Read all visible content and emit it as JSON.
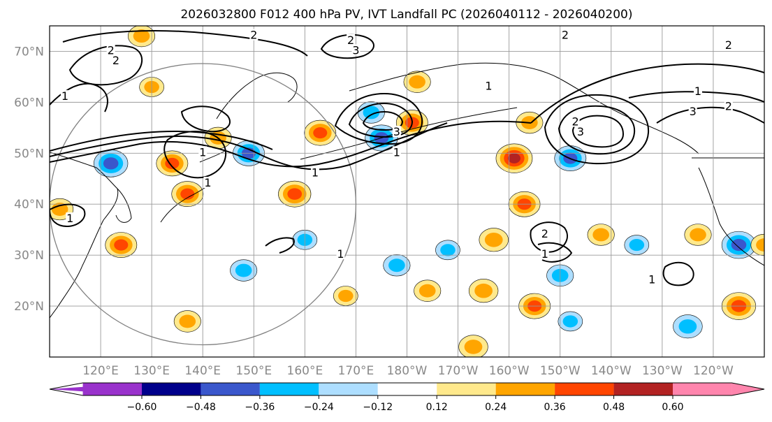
{
  "title": "2026032800 F012 400 hPa PV, IVT Landfall PC (2026040112 - 2026040200)",
  "map": {
    "projection": "PlateCarree",
    "lon_range_east": [
      110,
      250
    ],
    "lat_range": [
      10,
      75
    ],
    "lat_ticks": [
      {
        "value": 70,
        "label": "70°N"
      },
      {
        "value": 60,
        "label": "60°N"
      },
      {
        "value": 50,
        "label": "50°N"
      },
      {
        "value": 40,
        "label": "40°N"
      },
      {
        "value": 30,
        "label": "30°N"
      },
      {
        "value": 20,
        "label": "20°N"
      }
    ],
    "lon_ticks": [
      {
        "value": 120,
        "label": "120°E"
      },
      {
        "value": 130,
        "label": "130°E"
      },
      {
        "value": 140,
        "label": "140°E"
      },
      {
        "value": 150,
        "label": "150°E"
      },
      {
        "value": 160,
        "label": "160°E"
      },
      {
        "value": 170,
        "label": "170°E"
      },
      {
        "value": 180,
        "label": "180°W"
      },
      {
        "value": 190,
        "label": "170°W"
      },
      {
        "value": 200,
        "label": "160°W"
      },
      {
        "value": 210,
        "label": "150°W"
      },
      {
        "value": 220,
        "label": "140°W"
      },
      {
        "value": 230,
        "label": "130°W"
      },
      {
        "value": 240,
        "label": "120°W"
      }
    ],
    "contour_labels": [
      {
        "text": "2",
        "lon": 122,
        "lat": 70
      },
      {
        "text": "2",
        "lon": 123,
        "lat": 68
      },
      {
        "text": "2",
        "lon": 150,
        "lat": 73
      },
      {
        "text": "2",
        "lon": 169,
        "lat": 72
      },
      {
        "text": "3",
        "lon": 170,
        "lat": 70
      },
      {
        "text": "2",
        "lon": 211,
        "lat": 73
      },
      {
        "text": "2",
        "lon": 243,
        "lat": 71
      },
      {
        "text": "1",
        "lon": 113,
        "lat": 61
      },
      {
        "text": "1",
        "lon": 237,
        "lat": 62
      },
      {
        "text": "2",
        "lon": 243,
        "lat": 59
      },
      {
        "text": "3",
        "lon": 236,
        "lat": 58
      },
      {
        "text": "1",
        "lon": 196,
        "lat": 63
      },
      {
        "text": "2",
        "lon": 213,
        "lat": 56
      },
      {
        "text": "3",
        "lon": 214,
        "lat": 54
      },
      {
        "text": "3",
        "lon": 178,
        "lat": 54
      },
      {
        "text": "1",
        "lon": 178,
        "lat": 50
      },
      {
        "text": "1",
        "lon": 162,
        "lat": 46
      },
      {
        "text": "1",
        "lon": 140,
        "lat": 50
      },
      {
        "text": "1",
        "lon": 114,
        "lat": 37
      },
      {
        "text": "1",
        "lon": 141,
        "lat": 44
      },
      {
        "text": "1",
        "lon": 167,
        "lat": 30
      },
      {
        "text": "2",
        "lon": 207,
        "lat": 34
      },
      {
        "text": "1",
        "lon": 207,
        "lat": 30
      },
      {
        "text": "1",
        "lon": 228,
        "lat": 25
      }
    ],
    "range_circle": {
      "center_lon": 140,
      "center_lat": 40,
      "radius_deg": 30
    }
  },
  "colorbar": {
    "colors": [
      "#9932CC",
      "#00008B",
      "#3A57CC",
      "#00BFFF",
      "#ADDEFF",
      "#FFFFFF",
      "#FFE98C",
      "#FFA500",
      "#FF4500",
      "#B22222",
      "#FF85AD"
    ],
    "levels": [
      -0.6,
      -0.48,
      -0.36,
      -0.24,
      -0.12,
      0.12,
      0.24,
      0.36,
      0.48,
      0.6
    ],
    "tick_labels": [
      "−0.60",
      "−0.48",
      "−0.36",
      "−0.24",
      "−0.12",
      "0.12",
      "0.24",
      "0.36",
      "0.48",
      "0.60"
    ]
  },
  "anomalies": [
    {
      "lon": 122,
      "lat": 48,
      "value": -0.45
    },
    {
      "lon": 128,
      "lat": 73,
      "value": 0.3
    },
    {
      "lon": 130,
      "lat": 63,
      "value": 0.25
    },
    {
      "lon": 112,
      "lat": 39,
      "value": 0.3
    },
    {
      "lon": 124,
      "lat": 32,
      "value": 0.4
    },
    {
      "lon": 134,
      "lat": 48,
      "value": 0.4
    },
    {
      "lon": 137,
      "lat": 42,
      "value": 0.4
    },
    {
      "lon": 143,
      "lat": 53,
      "value": 0.3
    },
    {
      "lon": 149,
      "lat": 50,
      "value": -0.4
    },
    {
      "lon": 158,
      "lat": 42,
      "value": 0.42
    },
    {
      "lon": 163,
      "lat": 54,
      "value": 0.4
    },
    {
      "lon": 175,
      "lat": 53,
      "value": -0.42
    },
    {
      "lon": 173,
      "lat": 58,
      "value": -0.3
    },
    {
      "lon": 181,
      "lat": 56,
      "value": 0.4
    },
    {
      "lon": 182,
      "lat": 64,
      "value": 0.3
    },
    {
      "lon": 201,
      "lat": 49,
      "value": 0.5
    },
    {
      "lon": 204,
      "lat": 56,
      "value": 0.3
    },
    {
      "lon": 212,
      "lat": 49,
      "value": -0.4
    },
    {
      "lon": 203,
      "lat": 40,
      "value": 0.4
    },
    {
      "lon": 197,
      "lat": 33,
      "value": 0.35
    },
    {
      "lon": 178,
      "lat": 28,
      "value": -0.3
    },
    {
      "lon": 195,
      "lat": 23,
      "value": 0.35
    },
    {
      "lon": 205,
      "lat": 20,
      "value": 0.4
    },
    {
      "lon": 193,
      "lat": 12,
      "value": 0.35
    },
    {
      "lon": 210,
      "lat": 26,
      "value": -0.3
    },
    {
      "lon": 218,
      "lat": 34,
      "value": 0.3
    },
    {
      "lon": 225,
      "lat": 32,
      "value": -0.25
    },
    {
      "lon": 237,
      "lat": 34,
      "value": 0.3
    },
    {
      "lon": 245,
      "lat": 32,
      "value": -0.45
    },
    {
      "lon": 250,
      "lat": 32,
      "value": 0.3
    },
    {
      "lon": 245,
      "lat": 20,
      "value": 0.45
    },
    {
      "lon": 235,
      "lat": 16,
      "value": -0.35
    },
    {
      "lon": 160,
      "lat": 33,
      "value": -0.25
    },
    {
      "lon": 148,
      "lat": 27,
      "value": -0.3
    },
    {
      "lon": 137,
      "lat": 17,
      "value": 0.3
    },
    {
      "lon": 168,
      "lat": 22,
      "value": 0.25
    },
    {
      "lon": 184,
      "lat": 23,
      "value": 0.3
    },
    {
      "lon": 188,
      "lat": 31,
      "value": -0.25
    },
    {
      "lon": 212,
      "lat": 17,
      "value": -0.25
    }
  ]
}
